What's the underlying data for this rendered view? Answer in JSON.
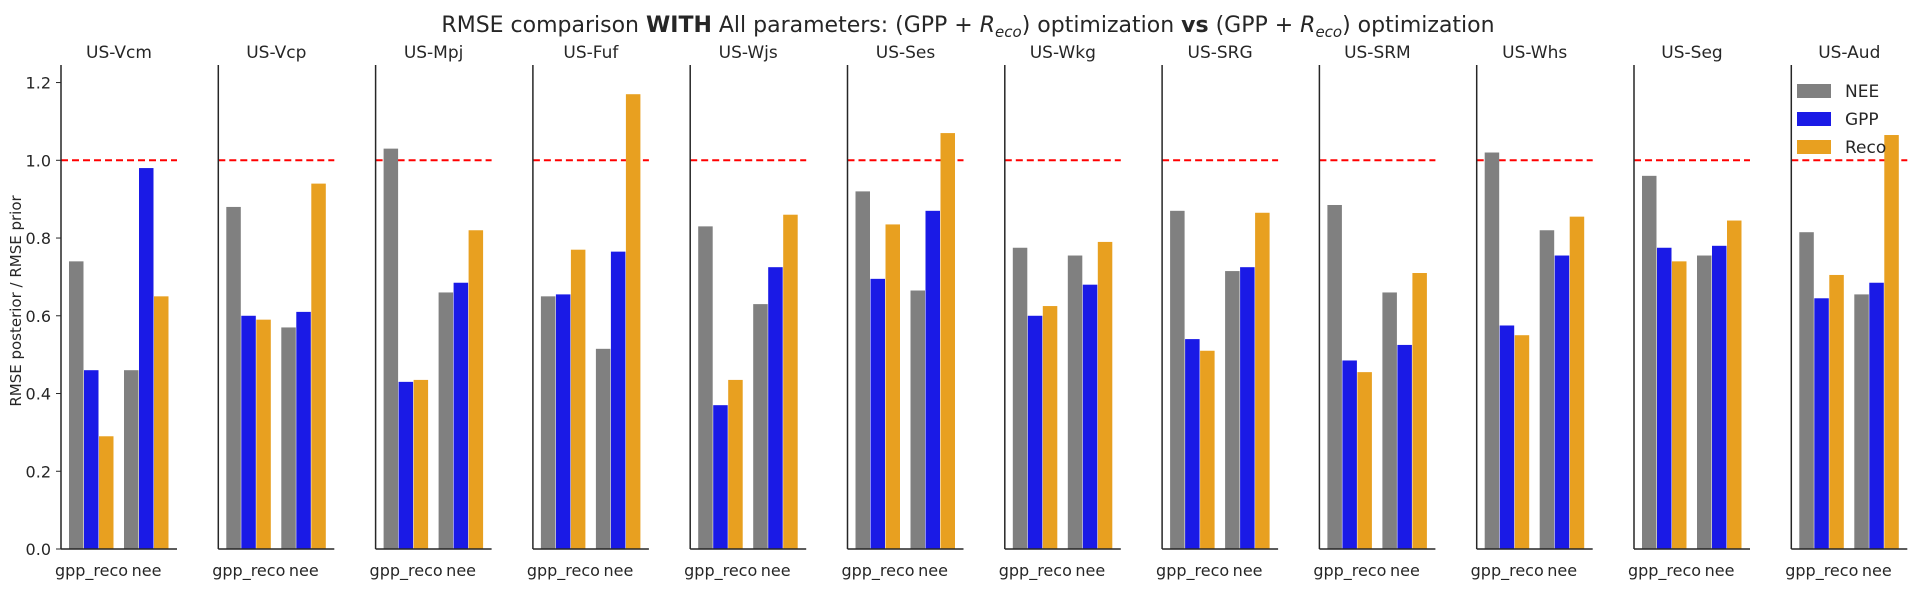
{
  "chart_data": {
    "type": "bar",
    "title": {
      "prefix": "RMSE comparison ",
      "bold1": "WITH",
      "middle": " All parameters: (GPP + ",
      "r_main": "R",
      "r_sub": "eco",
      "after_first": ") optimization ",
      "bold2": "vs",
      "second_open": " (GPP + ",
      "r_main2": "R",
      "r_sub2": "eco",
      "suffix": ") optimization"
    },
    "ylabel": "RMSE posterior / RMSE prior",
    "xlabel": "",
    "ylim": [
      0,
      1.24
    ],
    "yticks": [
      0.0,
      0.2,
      0.4,
      0.6,
      0.8,
      1.0,
      1.2
    ],
    "ytick_labels": [
      "0.0",
      "0.2",
      "0.4",
      "0.6",
      "0.8",
      "1.0",
      "1.2"
    ],
    "reference_line": 1.0,
    "reference_color": "#ff0000",
    "categories": [
      "gpp_reco",
      "nee"
    ],
    "series_meta": [
      {
        "name": "NEE",
        "color": "#808080"
      },
      {
        "name": "GPP",
        "color": "#1a1ae6"
      },
      {
        "name": "Reco",
        "color": "#e8a020"
      }
    ],
    "legend_position": "upper-right",
    "grid": false,
    "panels": [
      {
        "site": "US-Vcm",
        "values": {
          "gpp_reco": [
            0.74,
            0.46,
            0.29
          ],
          "nee": [
            0.46,
            0.98,
            0.65
          ]
        }
      },
      {
        "site": "US-Vcp",
        "values": {
          "gpp_reco": [
            0.88,
            0.6,
            0.59
          ],
          "nee": [
            0.57,
            0.61,
            0.94
          ]
        }
      },
      {
        "site": "US-Mpj",
        "values": {
          "gpp_reco": [
            1.03,
            0.43,
            0.435
          ],
          "nee": [
            0.66,
            0.685,
            0.82
          ]
        }
      },
      {
        "site": "US-Fuf",
        "values": {
          "gpp_reco": [
            0.65,
            0.655,
            0.77
          ],
          "nee": [
            0.515,
            0.765,
            1.17
          ]
        }
      },
      {
        "site": "US-Wjs",
        "values": {
          "gpp_reco": [
            0.83,
            0.37,
            0.435
          ],
          "nee": [
            0.63,
            0.725,
            0.86
          ]
        }
      },
      {
        "site": "US-Ses",
        "values": {
          "gpp_reco": [
            0.92,
            0.695,
            0.835
          ],
          "nee": [
            0.665,
            0.87,
            1.07
          ]
        }
      },
      {
        "site": "US-Wkg",
        "values": {
          "gpp_reco": [
            0.775,
            0.6,
            0.625
          ],
          "nee": [
            0.755,
            0.68,
            0.79
          ]
        }
      },
      {
        "site": "US-SRG",
        "values": {
          "gpp_reco": [
            0.87,
            0.54,
            0.51
          ],
          "nee": [
            0.715,
            0.725,
            0.865
          ]
        }
      },
      {
        "site": "US-SRM",
        "values": {
          "gpp_reco": [
            0.885,
            0.485,
            0.455
          ],
          "nee": [
            0.66,
            0.525,
            0.71
          ]
        }
      },
      {
        "site": "US-Whs",
        "values": {
          "gpp_reco": [
            1.02,
            0.575,
            0.55
          ],
          "nee": [
            0.82,
            0.755,
            0.855
          ]
        }
      },
      {
        "site": "US-Seg",
        "values": {
          "gpp_reco": [
            0.96,
            0.775,
            0.74
          ],
          "nee": [
            0.755,
            0.78,
            0.845
          ]
        }
      },
      {
        "site": "US-Aud",
        "values": {
          "gpp_reco": [
            0.815,
            0.645,
            0.705
          ],
          "nee": [
            0.655,
            0.685,
            1.065
          ]
        }
      }
    ]
  }
}
